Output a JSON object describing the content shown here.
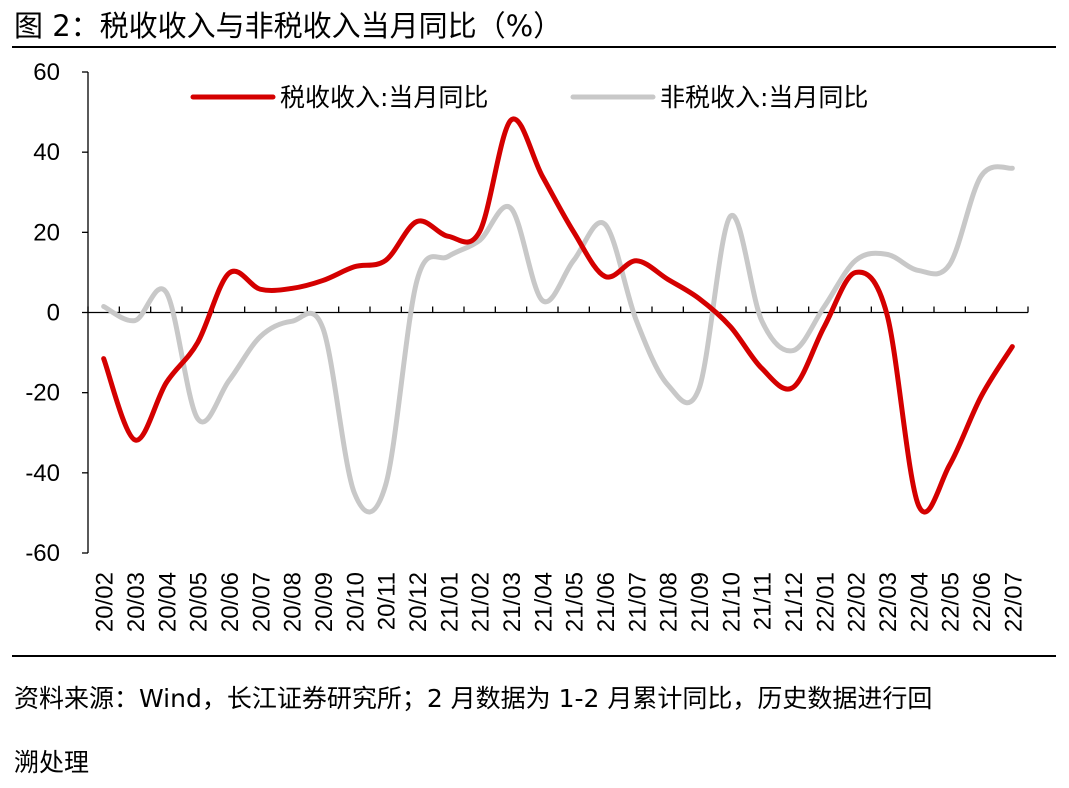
{
  "figure": {
    "title": "图 2：税收收入与非税收入当月同比（%）",
    "source_line1": "资料来源：Wind，长江证券研究所；2 月数据为 1-2 月累计同比，历史数据进行回",
    "source_line2": "溯处理"
  },
  "colors": {
    "series_tax": "#d40000",
    "series_nontax": "#c8c8c8",
    "axis": "#000000"
  },
  "chart_data": {
    "type": "line",
    "title": "税收收入与非税收入当月同比（%）",
    "xlabel": "",
    "ylabel": "",
    "ylim": [
      -60,
      60
    ],
    "yticks": [
      -60,
      -40,
      -20,
      0,
      20,
      40,
      60
    ],
    "ytick_labels": [
      "-60",
      "-40",
      "-20",
      "0",
      "20",
      "40",
      "60"
    ],
    "legend_position": "top",
    "grid": false,
    "x": [
      "20/02",
      "20/03",
      "20/04",
      "20/05",
      "20/06",
      "20/07",
      "20/08",
      "20/09",
      "20/10",
      "20/11",
      "20/12",
      "21/01",
      "21/02",
      "21/03",
      "21/04",
      "21/05",
      "21/06",
      "21/07",
      "21/08",
      "21/09",
      "21/10",
      "21/11",
      "21/12",
      "22/01",
      "22/02",
      "22/03",
      "22/04",
      "22/05",
      "22/06",
      "22/07"
    ],
    "series": [
      {
        "name": "税收收入:当月同比",
        "color": "#d40000",
        "values": [
          -11.5,
          -31.8,
          -17.5,
          -7.5,
          9.8,
          5.8,
          6.0,
          8.0,
          11.4,
          13.0,
          22.7,
          19.0,
          20.2,
          48.0,
          34.0,
          20.1,
          9.0,
          12.9,
          8.3,
          3.5,
          -3.5,
          -13.9,
          -18.7,
          -3.5,
          10.0,
          -0.5,
          -48.0,
          -38.0,
          -21.0,
          -8.5
        ]
      },
      {
        "name": "非税收入:当月同比",
        "color": "#c8c8c8",
        "values": [
          1.5,
          -2.0,
          5.0,
          -26.5,
          -17.0,
          -6.0,
          -2.2,
          -4.0,
          -45.0,
          -43.0,
          8.0,
          14.0,
          18.0,
          26.0,
          3.0,
          13.0,
          22.0,
          -2.0,
          -18.0,
          -19.0,
          24.0,
          -2.0,
          -9.5,
          1.5,
          13.0,
          14.5,
          10.5,
          12.0,
          34.0,
          36.0
        ]
      }
    ]
  }
}
